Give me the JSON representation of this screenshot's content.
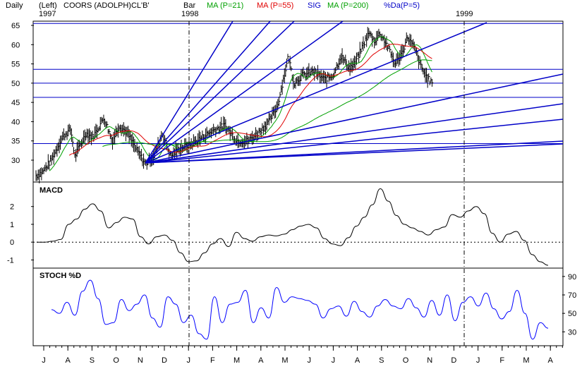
{
  "chart_data": [
    {
      "type": "bar",
      "title": "COORS (ADOLPH)CL'B'",
      "header": {
        "daily": "Daily",
        "left": "(Left)",
        "name": "COORS (ADOLPH)CL'B'",
        "bar": "Bar",
        "ma21": "MA (P=21)",
        "ma55": "MA (P=55)",
        "sig": "SIG",
        "ma200": "MA (P=200)",
        "pctd": "%Da(P=5)",
        "year_start": "1997",
        "year_1998": "1998",
        "year_1999": "1999"
      },
      "colors": {
        "bars": "#000000",
        "ma21": "#00a000",
        "ma55": "#e00000",
        "ma200": "#00a000",
        "gann_fan": "#0000c8",
        "macd": "#000000",
        "stoch": "#0000ff",
        "grid": "#000000"
      },
      "ylim": [
        26,
        66
      ],
      "yticks": [
        "65",
        "60",
        "55",
        "50",
        "45",
        "40",
        "35",
        "30"
      ],
      "horizontal_levels": [
        65.5,
        53.6,
        50,
        46.3,
        34.3
      ],
      "price_anchor_points": [
        [
          0,
          26
        ],
        [
          10,
          27
        ],
        [
          22,
          30
        ],
        [
          38,
          36
        ],
        [
          50,
          38
        ],
        [
          56,
          31
        ],
        [
          72,
          37
        ],
        [
          82,
          36
        ],
        [
          98,
          41
        ],
        [
          110,
          35
        ],
        [
          120,
          39
        ],
        [
          132,
          37
        ],
        [
          144,
          33
        ],
        [
          158,
          29
        ],
        [
          170,
          31
        ],
        [
          182,
          37
        ],
        [
          194,
          31
        ],
        [
          206,
          33
        ],
        [
          222,
          34
        ],
        [
          240,
          36
        ],
        [
          258,
          38
        ],
        [
          272,
          39
        ],
        [
          290,
          35
        ],
        [
          306,
          35
        ],
        [
          320,
          37
        ],
        [
          336,
          40
        ],
        [
          348,
          44
        ],
        [
          358,
          52
        ],
        [
          364,
          57
        ],
        [
          372,
          50
        ],
        [
          384,
          52
        ],
        [
          400,
          53
        ],
        [
          416,
          51
        ],
        [
          428,
          52
        ],
        [
          440,
          57
        ],
        [
          452,
          54
        ],
        [
          460,
          55
        ],
        [
          472,
          60
        ],
        [
          480,
          63
        ],
        [
          488,
          61
        ],
        [
          496,
          63
        ],
        [
          506,
          60
        ],
        [
          518,
          55
        ],
        [
          528,
          58
        ],
        [
          536,
          62
        ],
        [
          546,
          59
        ],
        [
          556,
          54
        ],
        [
          562,
          52
        ],
        [
          566,
          51
        ],
        [
          572,
          50
        ]
      ],
      "month_labels": [
        "J",
        "A",
        "S",
        "O",
        "N",
        "D",
        "J",
        "F",
        "M",
        "A",
        "M",
        "J",
        "J",
        "A",
        "S",
        "O",
        "N",
        "D",
        "J",
        "F",
        "M",
        "A"
      ]
    },
    {
      "type": "line",
      "title": "MACD",
      "ylim": [
        -1.3,
        2.9
      ],
      "yticks": [
        "2",
        "1",
        "0",
        "-1"
      ],
      "values": [
        0,
        0,
        0.05,
        0.15,
        1.0,
        1.3,
        1.85,
        2.15,
        1.75,
        0.8,
        1.1,
        1.4,
        1.3,
        0.3,
        -0.1,
        0.3,
        0.4,
        0.1,
        -0.6,
        -1.1,
        -1.05,
        -0.6,
        -0.1,
        0.2,
        -0.25,
        0.55,
        0.2,
        0.05,
        0.3,
        0.4,
        0.35,
        0.45,
        0.7,
        0.9,
        1.0,
        0.8,
        0.2,
        -0.1,
        -0.2,
        0.25,
        0.9,
        1.4,
        2.1,
        3.0,
        2.3,
        1.5,
        1.0,
        0.8,
        0.6,
        0.4,
        0.7,
        0.85,
        1.55,
        1.4,
        1.75,
        2.0,
        1.6,
        0.5,
        0.0,
        0.45,
        0.6,
        0.1,
        -0.7,
        -1.1,
        -1.3
      ]
    },
    {
      "type": "line",
      "title": "STOCH %D",
      "ylim": [
        18,
        96
      ],
      "yticks": [
        "90",
        "70",
        "50",
        "30"
      ],
      "values": [
        54,
        50,
        62,
        48,
        74,
        86,
        66,
        38,
        40,
        65,
        53,
        60,
        70,
        45,
        35,
        68,
        60,
        40,
        48,
        28,
        22,
        68,
        40,
        60,
        62,
        75,
        40,
        56,
        45,
        78,
        62,
        68,
        66,
        64,
        60,
        45,
        55,
        58,
        47,
        63,
        52,
        46,
        58,
        65,
        58,
        55,
        66,
        56,
        46,
        64,
        48,
        70,
        42,
        62,
        68,
        58,
        72,
        55,
        44,
        52,
        75,
        50,
        22,
        40,
        34
      ]
    }
  ]
}
